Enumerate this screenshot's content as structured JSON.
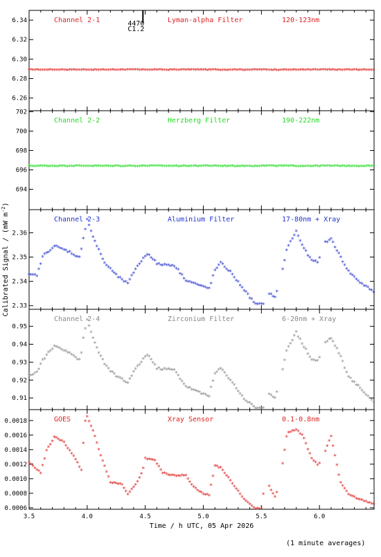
{
  "figure": {
    "xlabel": "Time / h UTC, 05 Apr 2026",
    "ylabel_main": "Calibrated Signal / (mW m",
    "ylabel_sup": "-2",
    "ylabel_end": ")",
    "footnote": "(1 minute averages)",
    "flare_marker": {
      "time": 4.48,
      "label_top": "4470",
      "label_bottom": "C1.2"
    }
  },
  "chart_data": [
    {
      "type": "scatter",
      "labels": [
        "Channel 2-1",
        "Lyman-alpha Filter",
        "120-123nm"
      ],
      "color": "#dd2222",
      "ylim": [
        6.247,
        6.35
      ],
      "yticks": [
        6.26,
        6.28,
        6.3,
        6.32,
        6.34
      ],
      "ytick_labels": [
        "6.26",
        "6.28",
        "6.30",
        "6.32",
        "6.34"
      ],
      "xlim": [
        3.5,
        6.47
      ],
      "xticks": [
        3.5,
        4.0,
        4.5,
        5.0,
        5.5,
        6.0
      ],
      "keypoints": [
        [
          3.5,
          6.289
        ],
        [
          4.5,
          6.289
        ],
        [
          5.5,
          6.289
        ],
        [
          6.47,
          6.289
        ]
      ],
      "jitter": 0.0003,
      "gaps": []
    },
    {
      "type": "scatter",
      "labels": [
        "Channel 2-2",
        "Herzberg Filter",
        "190-222nm"
      ],
      "color": "#22dd22",
      "ylim": [
        691.9,
        702.1
      ],
      "yticks": [
        694,
        696,
        698,
        700,
        702
      ],
      "ytick_labels": [
        "694",
        "696",
        "698",
        "700",
        "702"
      ],
      "xlim": [
        3.5,
        6.47
      ],
      "xticks": [
        3.5,
        4.0,
        4.5,
        5.0,
        5.5,
        6.0
      ],
      "keypoints": [
        [
          3.5,
          696.4
        ],
        [
          4.5,
          696.4
        ],
        [
          5.5,
          696.4
        ],
        [
          6.47,
          696.4
        ]
      ],
      "jitter": 0.04,
      "gaps": []
    },
    {
      "type": "scatter",
      "labels": [
        "Channel 2-3",
        "Aluminium Filter",
        "17-80nm + Xray"
      ],
      "color": "#2233cc",
      "ylim": [
        2.3285,
        2.3695
      ],
      "yticks": [
        2.33,
        2.34,
        2.35,
        2.36
      ],
      "ytick_labels": [
        "2.33",
        "2.34",
        "2.35",
        "2.36"
      ],
      "xlim": [
        3.5,
        6.47
      ],
      "xticks": [
        3.5,
        4.0,
        4.5,
        5.0,
        5.5,
        6.0
      ],
      "keypoints": [
        [
          3.5,
          2.3425
        ],
        [
          3.57,
          2.3425
        ],
        [
          3.62,
          2.3505
        ],
        [
          3.72,
          2.3545
        ],
        [
          3.85,
          2.352
        ],
        [
          3.94,
          2.3495
        ],
        [
          3.96,
          2.3565
        ],
        [
          4.0,
          2.3655
        ],
        [
          4.06,
          2.357
        ],
        [
          4.15,
          2.3475
        ],
        [
          4.26,
          2.342
        ],
        [
          4.35,
          2.339
        ],
        [
          4.42,
          2.3455
        ],
        [
          4.52,
          2.3515
        ],
        [
          4.58,
          2.3485
        ],
        [
          4.6,
          2.347
        ],
        [
          4.75,
          2.3465
        ],
        [
          4.85,
          2.3405
        ],
        [
          4.98,
          2.338
        ],
        [
          5.05,
          2.337
        ],
        [
          5.1,
          2.3445
        ],
        [
          5.15,
          2.3475
        ],
        [
          5.23,
          2.344
        ],
        [
          5.35,
          2.3365
        ],
        [
          5.45,
          2.3305
        ],
        [
          5.52,
          2.3305
        ],
        [
          5.55,
          2.3355
        ],
        [
          5.62,
          2.3335
        ],
        [
          5.66,
          2.3395
        ],
        [
          5.72,
          2.3535
        ],
        [
          5.8,
          2.3605
        ],
        [
          5.86,
          2.354
        ],
        [
          5.93,
          2.3485
        ],
        [
          5.99,
          2.348
        ],
        [
          6.04,
          2.3555
        ],
        [
          6.1,
          2.3575
        ],
        [
          6.18,
          2.35
        ],
        [
          6.25,
          2.344
        ],
        [
          6.35,
          2.3395
        ],
        [
          6.47,
          2.3355
        ]
      ],
      "jitter": 0.0004,
      "gaps": [
        [
          5.53,
          5.56
        ],
        [
          5.64,
          5.67
        ],
        [
          6.0,
          6.04
        ]
      ]
    },
    {
      "type": "scatter",
      "labels": [
        "Channel 2-4",
        "Zirconium Filter",
        "6-20nm + Xray"
      ],
      "color": "#888888",
      "ylim": [
        0.9035,
        0.9595
      ],
      "yticks": [
        0.91,
        0.92,
        0.93,
        0.94,
        0.95
      ],
      "ytick_labels": [
        "0.91",
        "0.92",
        "0.93",
        "0.94",
        "0.95"
      ],
      "xlim": [
        3.5,
        6.47
      ],
      "xticks": [
        3.5,
        4.0,
        4.5,
        5.0,
        5.5,
        6.0
      ],
      "keypoints": [
        [
          3.5,
          0.9225
        ],
        [
          3.57,
          0.9245
        ],
        [
          3.62,
          0.9315
        ],
        [
          3.72,
          0.939
        ],
        [
          3.85,
          0.9355
        ],
        [
          3.94,
          0.9305
        ],
        [
          3.96,
          0.941
        ],
        [
          4.0,
          0.9535
        ],
        [
          4.06,
          0.9415
        ],
        [
          4.15,
          0.9285
        ],
        [
          4.26,
          0.9215
        ],
        [
          4.35,
          0.9185
        ],
        [
          4.42,
          0.9265
        ],
        [
          4.52,
          0.9345
        ],
        [
          4.58,
          0.9285
        ],
        [
          4.6,
          0.9265
        ],
        [
          4.75,
          0.9255
        ],
        [
          4.85,
          0.9165
        ],
        [
          4.98,
          0.9125
        ],
        [
          5.05,
          0.9115
        ],
        [
          5.1,
          0.9235
        ],
        [
          5.15,
          0.9265
        ],
        [
          5.23,
          0.9205
        ],
        [
          5.35,
          0.9095
        ],
        [
          5.45,
          0.9045
        ],
        [
          5.52,
          0.9045
        ],
        [
          5.55,
          0.9125
        ],
        [
          5.62,
          0.9095
        ],
        [
          5.66,
          0.9195
        ],
        [
          5.72,
          0.9375
        ],
        [
          5.8,
          0.9465
        ],
        [
          5.86,
          0.9395
        ],
        [
          5.93,
          0.9315
        ],
        [
          5.99,
          0.9305
        ],
        [
          6.04,
          0.9405
        ],
        [
          6.1,
          0.9435
        ],
        [
          6.18,
          0.9335
        ],
        [
          6.25,
          0.9215
        ],
        [
          6.35,
          0.9155
        ],
        [
          6.47,
          0.9075
        ]
      ],
      "jitter": 0.0006,
      "gaps": [
        [
          5.53,
          5.56
        ],
        [
          5.64,
          5.67
        ],
        [
          6.0,
          6.04
        ]
      ]
    },
    {
      "type": "scatter",
      "labels": [
        "GOES",
        "Xray Sensor",
        "0.1-0.8nm"
      ],
      "color": "#dd2222",
      "ylim": [
        0.00058,
        0.00195
      ],
      "yticks": [
        0.0006,
        0.0008,
        0.001,
        0.0012,
        0.0014,
        0.0016,
        0.0018
      ],
      "ytick_labels": [
        "0.0006",
        "0.0008",
        "0.0010",
        "0.0012",
        "0.0014",
        "0.0016",
        "0.0018"
      ],
      "xlim": [
        3.5,
        6.47
      ],
      "xticks": [
        3.5,
        4.0,
        4.5,
        5.0,
        5.5,
        6.0
      ],
      "keypoints": [
        [
          3.5,
          0.00122
        ],
        [
          3.55,
          0.00115
        ],
        [
          3.6,
          0.00108
        ],
        [
          3.65,
          0.00138
        ],
        [
          3.72,
          0.00158
        ],
        [
          3.8,
          0.0015
        ],
        [
          3.88,
          0.00132
        ],
        [
          3.95,
          0.00112
        ],
        [
          3.98,
          0.00178
        ],
        [
          4.0,
          0.00185
        ],
        [
          4.06,
          0.00162
        ],
        [
          4.12,
          0.0013
        ],
        [
          4.2,
          0.00095
        ],
        [
          4.3,
          0.00092
        ],
        [
          4.35,
          0.00078
        ],
        [
          4.42,
          0.00092
        ],
        [
          4.48,
          0.00112
        ],
        [
          4.5,
          0.00128
        ],
        [
          4.58,
          0.00125
        ],
        [
          4.6,
          0.0012
        ],
        [
          4.65,
          0.00108
        ],
        [
          4.72,
          0.00105
        ],
        [
          4.85,
          0.00104
        ],
        [
          4.92,
          0.00088
        ],
        [
          5.0,
          0.00079
        ],
        [
          5.05,
          0.00077
        ],
        [
          5.1,
          0.00118
        ],
        [
          5.15,
          0.00115
        ],
        [
          5.23,
          0.00098
        ],
        [
          5.35,
          0.00072
        ],
        [
          5.45,
          0.00058
        ],
        [
          5.5,
          0.0006
        ],
        [
          5.52,
          0.00083
        ],
        [
          5.55,
          0.00095
        ],
        [
          5.62,
          0.00074
        ],
        [
          5.66,
          0.00095
        ],
        [
          5.72,
          0.00162
        ],
        [
          5.8,
          0.00168
        ],
        [
          5.86,
          0.00158
        ],
        [
          5.93,
          0.00128
        ],
        [
          5.99,
          0.00118
        ],
        [
          6.04,
          0.00135
        ],
        [
          6.1,
          0.00158
        ],
        [
          6.18,
          0.00095
        ],
        [
          6.25,
          0.00078
        ],
        [
          6.35,
          0.00071
        ],
        [
          6.47,
          0.00065
        ]
      ],
      "jitter": 8e-06,
      "gaps": [
        [
          5.53,
          5.56
        ],
        [
          5.64,
          5.67
        ],
        [
          6.0,
          6.04
        ]
      ]
    }
  ]
}
